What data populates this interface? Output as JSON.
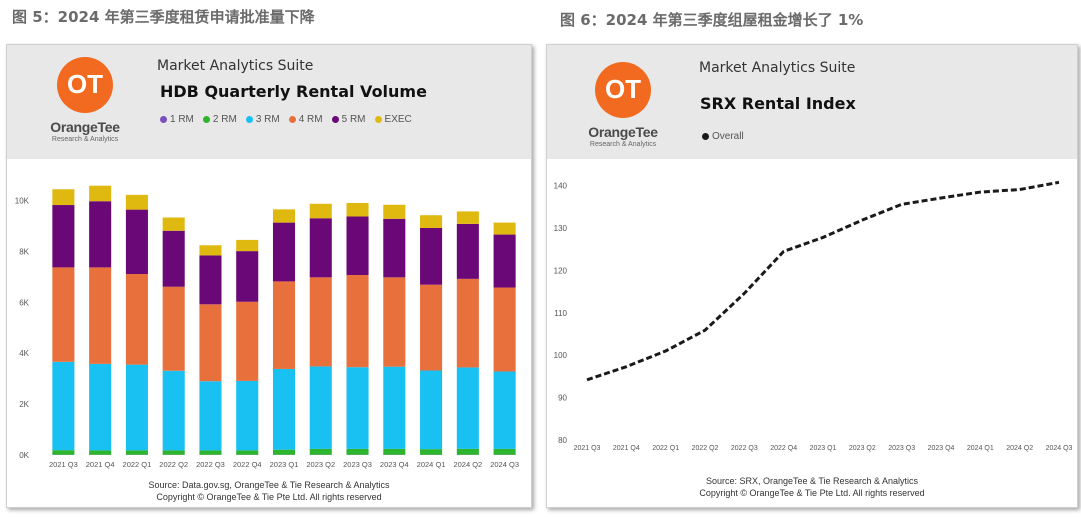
{
  "captions": {
    "left": "图 5：2024 年第三季度租赁申请批准量下降",
    "right": "图 6：2024 年第三季度组屋租金增长了 1%"
  },
  "brand": {
    "logo_letters": "OT",
    "name": "OrangeTee",
    "tagline": "Research & Analytics",
    "suite": "Market Analytics Suite",
    "logo_color": "#f26a1f"
  },
  "charts": [
    {
      "source_line1": "Source: Data.gov.sg, OrangeTee & Tie Research & Analytics",
      "source_line2": "Copyright © OrangeTee & Tie Pte Ltd. All rights reserved",
      "chart_data": {
        "type": "bar",
        "stacked": true,
        "title": "HDB Quarterly Rental Volume",
        "categories": [
          "2021 Q3",
          "2021 Q4",
          "2022 Q1",
          "2022 Q2",
          "2022 Q3",
          "2022 Q4",
          "2023 Q1",
          "2023 Q2",
          "2023 Q3",
          "2023 Q4",
          "2024 Q1",
          "2024 Q2",
          "2024 Q3"
        ],
        "yticks": [
          "0K",
          "2K",
          "4K",
          "6K",
          "8K",
          "10K"
        ],
        "ylim": [
          0,
          11000
        ],
        "legend_position": "top",
        "series": [
          {
            "name": "1 RM",
            "color": "#7b4fbf",
            "values": [
              10,
              10,
              10,
              10,
              10,
              10,
              10,
              10,
              10,
              10,
              10,
              10,
              10
            ]
          },
          {
            "name": "2 RM",
            "color": "#2db52d",
            "values": [
              180,
              170,
              170,
              170,
              170,
              170,
              200,
              230,
              230,
              230,
              220,
              230,
              230
            ]
          },
          {
            "name": "3 RM",
            "color": "#19c0f2",
            "values": [
              3470,
              3400,
              3370,
              3130,
              2720,
              2730,
              3170,
              3240,
              3210,
              3230,
              3090,
              3200,
              3040
            ]
          },
          {
            "name": "4 RM",
            "color": "#e8703c",
            "values": [
              3710,
              3790,
              3560,
              3300,
              3020,
              3110,
              3440,
              3500,
              3620,
              3510,
              3370,
              3480,
              3300
            ]
          },
          {
            "name": "5 RM",
            "color": "#6a0877",
            "values": [
              2450,
              2600,
              2530,
              2200,
              1920,
              1990,
              2310,
              2320,
              2300,
              2300,
              2230,
              2160,
              2080
            ]
          },
          {
            "name": "EXEC",
            "color": "#e0b910",
            "values": [
              620,
              610,
              580,
              520,
              400,
              440,
              520,
              570,
              530,
              550,
              500,
              490,
              470
            ]
          }
        ]
      }
    },
    {
      "source_line1": "Source: SRX, OrangeTee & Tie Research & Analytics",
      "source_line2": "Copyright © OrangeTee & Tie Pte Ltd. All rights reserved",
      "chart_data": {
        "type": "line",
        "title": "SRX Rental Index",
        "x": [
          "2021 Q3",
          "2021 Q4",
          "2022 Q1",
          "2022 Q2",
          "2022 Q3",
          "2022 Q4",
          "2023 Q1",
          "2023 Q2",
          "2023 Q3",
          "2023 Q4",
          "2024 Q1",
          "2024 Q2",
          "2024 Q3"
        ],
        "yticks": [
          80,
          90,
          100,
          110,
          120,
          130,
          140
        ],
        "ylim": [
          80,
          143
        ],
        "legend_position": "top",
        "series": [
          {
            "name": "Overall",
            "color": "#1a1a1a",
            "line_style": "dashed",
            "values": [
              94.2,
              97.3,
              101.0,
              105.9,
              114.6,
              124.5,
              127.8,
              131.9,
              135.6,
              137.1,
              138.5,
              139.1,
              140.8
            ]
          }
        ]
      }
    }
  ]
}
